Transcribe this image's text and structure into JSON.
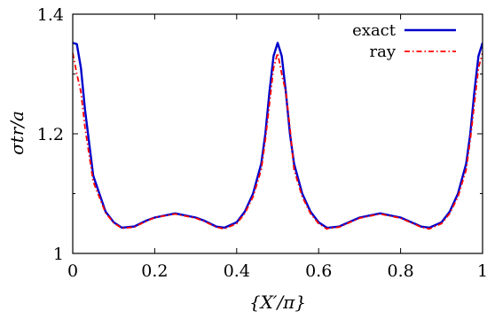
{
  "chart_data": {
    "type": "line",
    "xlabel": "{X′/π}",
    "ylabel": "σtr/a",
    "xlim": [
      0,
      1
    ],
    "ylim": [
      1.0,
      1.4
    ],
    "x_ticks": [
      "0",
      "0.2",
      "0.4",
      "0.6",
      "0.8",
      "1"
    ],
    "y_ticks": [
      "1",
      "1.2",
      "1.4"
    ],
    "legend_position": "top-right",
    "grid": false,
    "series": [
      {
        "name": "exact",
        "color": "#0000cc",
        "style": "solid",
        "x": [
          0,
          0.01,
          0.02,
          0.03,
          0.05,
          0.08,
          0.1,
          0.12,
          0.15,
          0.18,
          0.2,
          0.25,
          0.3,
          0.32,
          0.35,
          0.37,
          0.4,
          0.42,
          0.44,
          0.46,
          0.47,
          0.48,
          0.49,
          0.5,
          0.51,
          0.52,
          0.53,
          0.54,
          0.56,
          0.58,
          0.6,
          0.62,
          0.625,
          0.65,
          0.7,
          0.75,
          0.8,
          0.85,
          0.87,
          0.9,
          0.92,
          0.94,
          0.96,
          0.97,
          0.98,
          0.99,
          1.0
        ],
        "y": [
          1.352,
          1.35,
          1.31,
          1.24,
          1.13,
          1.07,
          1.052,
          1.043,
          1.045,
          1.055,
          1.06,
          1.067,
          1.06,
          1.055,
          1.045,
          1.043,
          1.052,
          1.07,
          1.1,
          1.15,
          1.2,
          1.27,
          1.33,
          1.352,
          1.33,
          1.27,
          1.2,
          1.15,
          1.1,
          1.07,
          1.052,
          1.043,
          1.043,
          1.045,
          1.06,
          1.067,
          1.06,
          1.045,
          1.043,
          1.052,
          1.07,
          1.1,
          1.15,
          1.2,
          1.27,
          1.33,
          1.352
        ]
      },
      {
        "name": "ray",
        "color": "#ff0000",
        "style": "dash-dot",
        "x": [
          0,
          0.01,
          0.02,
          0.03,
          0.05,
          0.08,
          0.1,
          0.12,
          0.15,
          0.18,
          0.2,
          0.25,
          0.3,
          0.32,
          0.35,
          0.37,
          0.4,
          0.42,
          0.44,
          0.46,
          0.47,
          0.48,
          0.49,
          0.5,
          0.51,
          0.52,
          0.53,
          0.54,
          0.56,
          0.58,
          0.6,
          0.62,
          0.625,
          0.65,
          0.7,
          0.75,
          0.8,
          0.85,
          0.87,
          0.9,
          0.92,
          0.94,
          0.96,
          0.97,
          0.98,
          0.99,
          1.0
        ],
        "y": [
          1.335,
          1.3,
          1.27,
          1.21,
          1.12,
          1.068,
          1.051,
          1.042,
          1.044,
          1.054,
          1.06,
          1.066,
          1.059,
          1.054,
          1.044,
          1.041,
          1.05,
          1.067,
          1.095,
          1.14,
          1.19,
          1.25,
          1.31,
          1.335,
          1.3,
          1.27,
          1.21,
          1.14,
          1.095,
          1.067,
          1.05,
          1.041,
          1.042,
          1.044,
          1.059,
          1.066,
          1.059,
          1.044,
          1.041,
          1.05,
          1.067,
          1.095,
          1.14,
          1.19,
          1.25,
          1.31,
          1.335
        ]
      }
    ]
  }
}
